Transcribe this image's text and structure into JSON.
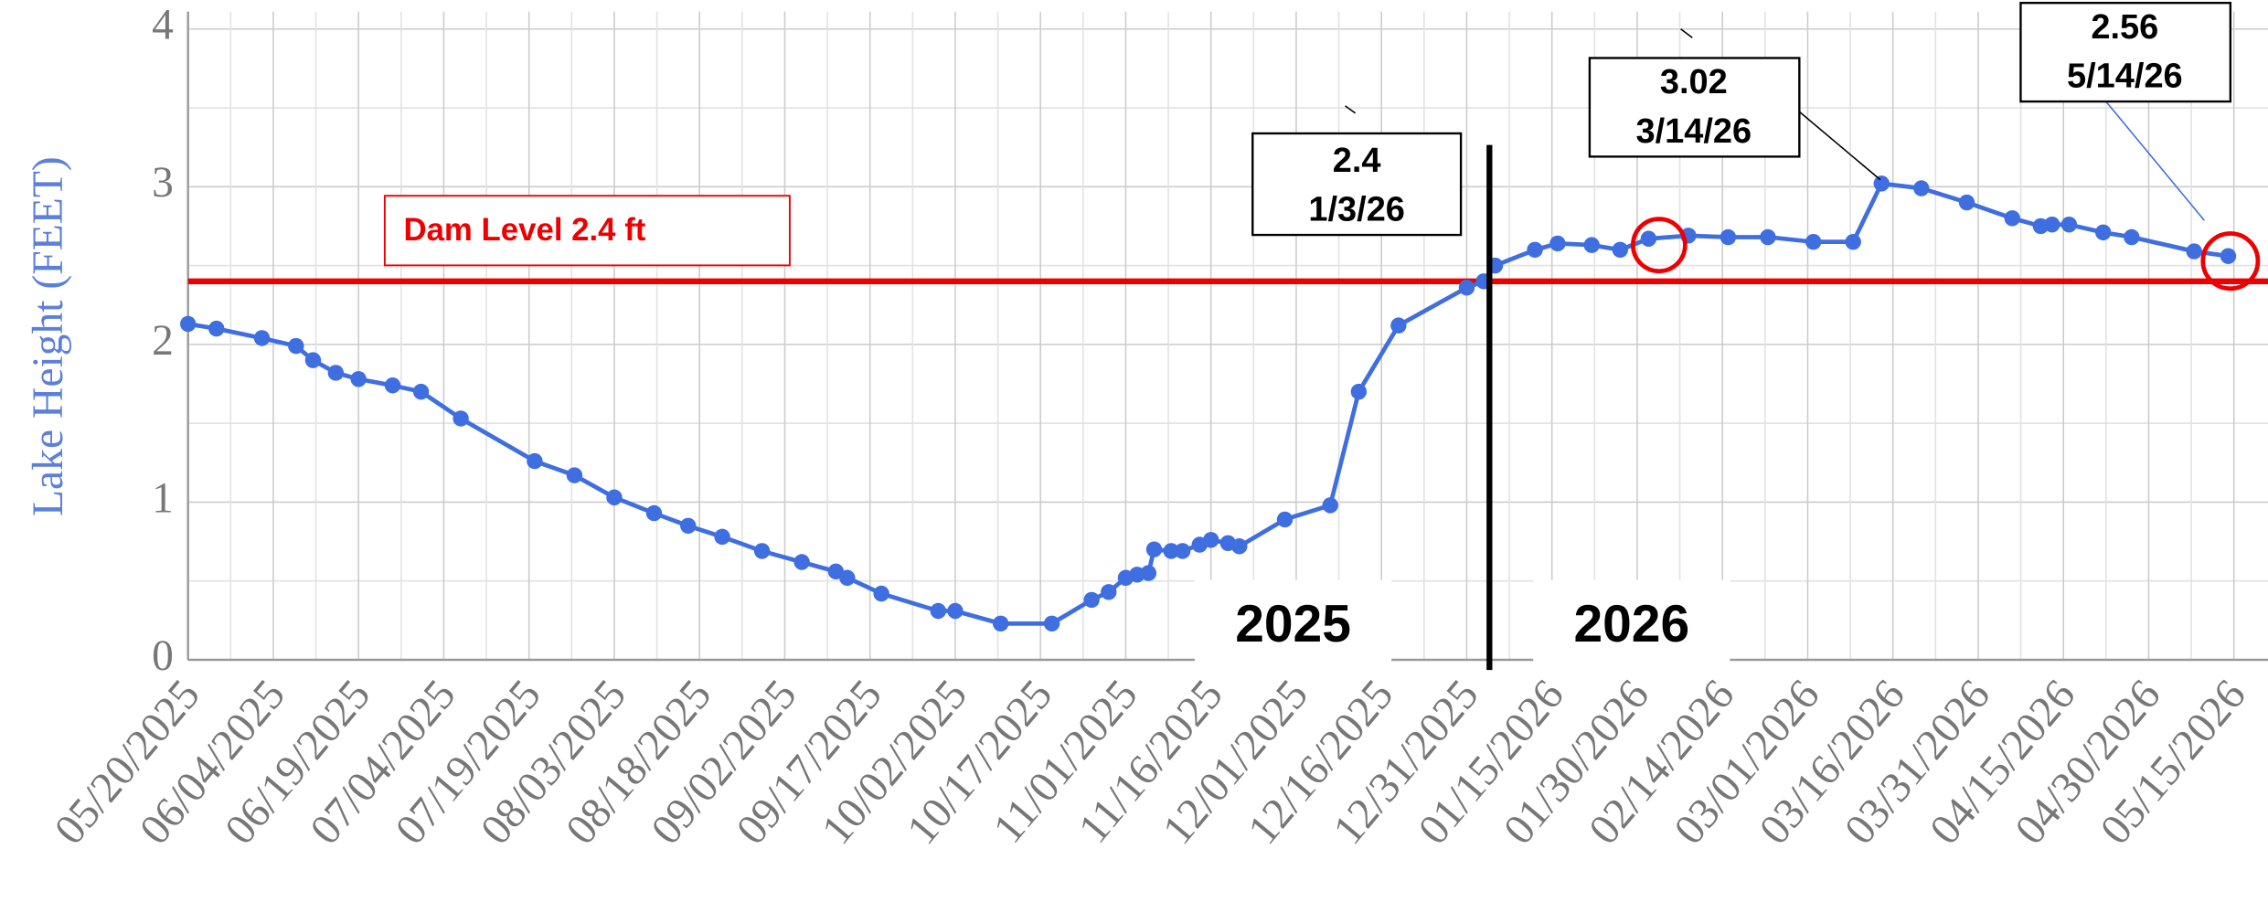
{
  "chart_data": {
    "type": "line",
    "y_label": "Lake Height (FEET)",
    "x": [
      "2025-05-20",
      "2025-05-25",
      "2025-06-02",
      "2025-06-08",
      "2025-06-11",
      "2025-06-15",
      "2025-06-19",
      "2025-06-25",
      "2025-06-30",
      "2025-07-07",
      "2025-07-20",
      "2025-07-27",
      "2025-08-03",
      "2025-08-10",
      "2025-08-16",
      "2025-08-22",
      "2025-08-29",
      "2025-09-05",
      "2025-09-11",
      "2025-09-13",
      "2025-09-19",
      "2025-09-29",
      "2025-10-02",
      "2025-10-10",
      "2025-10-19",
      "2025-10-26",
      "2025-10-29",
      "2025-11-01",
      "2025-11-03",
      "2025-11-05",
      "2025-11-06",
      "2025-11-09",
      "2025-11-11",
      "2025-11-14",
      "2025-11-16",
      "2025-11-19",
      "2025-11-21",
      "2025-11-29",
      "2025-12-07",
      "2025-12-12",
      "2025-12-19",
      "2025-12-31",
      "2026-01-03",
      "2026-01-05",
      "2026-01-12",
      "2026-01-16",
      "2026-01-22",
      "2026-01-27",
      "2026-02-01",
      "2026-02-08",
      "2026-02-15",
      "2026-02-22",
      "2026-03-02",
      "2026-03-09",
      "2026-03-14",
      "2026-03-21",
      "2026-03-29",
      "2026-04-06",
      "2026-04-11",
      "2026-04-13",
      "2026-04-16",
      "2026-04-22",
      "2026-04-27",
      "2026-05-08",
      "2026-05-14"
    ],
    "series": [
      {
        "name": "Lake Height",
        "color": "#3f6ee0",
        "values": [
          2.13,
          2.1,
          2.04,
          1.99,
          1.9,
          1.82,
          1.78,
          1.74,
          1.7,
          1.53,
          1.26,
          1.17,
          1.03,
          0.93,
          0.85,
          0.78,
          0.69,
          0.62,
          0.56,
          0.52,
          0.42,
          0.31,
          0.31,
          0.23,
          0.23,
          0.38,
          0.43,
          0.52,
          0.54,
          0.55,
          0.7,
          0.69,
          0.69,
          0.73,
          0.76,
          0.74,
          0.72,
          0.89,
          0.98,
          1.7,
          2.12,
          2.36,
          2.4,
          2.5,
          2.6,
          2.64,
          2.63,
          2.6,
          2.67,
          2.69,
          2.68,
          2.68,
          2.65,
          2.65,
          3.02,
          2.99,
          2.9,
          2.8,
          2.75,
          2.76,
          2.76,
          2.71,
          2.68,
          2.59,
          2.56
        ]
      }
    ],
    "xlim": [
      "2025-05-20",
      "2026-05-21"
    ],
    "xticks": [
      {
        "value": "2025-05-20",
        "label": "05/20/2025"
      },
      {
        "value": "2025-06-04",
        "label": "06/04/2025"
      },
      {
        "value": "2025-06-19",
        "label": "06/19/2025"
      },
      {
        "value": "2025-07-04",
        "label": "07/04/2025"
      },
      {
        "value": "2025-07-19",
        "label": "07/19/2025"
      },
      {
        "value": "2025-08-03",
        "label": "08/03/2025"
      },
      {
        "value": "2025-08-18",
        "label": "08/18/2025"
      },
      {
        "value": "2025-09-02",
        "label": "09/02/2025"
      },
      {
        "value": "2025-09-17",
        "label": "09/17/2025"
      },
      {
        "value": "2025-10-02",
        "label": "10/02/2025"
      },
      {
        "value": "2025-10-17",
        "label": "10/17/2025"
      },
      {
        "value": "2025-11-01",
        "label": "11/01/2025"
      },
      {
        "value": "2025-11-16",
        "label": "11/16/2025"
      },
      {
        "value": "2025-12-01",
        "label": "12/01/2025"
      },
      {
        "value": "2025-12-16",
        "label": "12/16/2025"
      },
      {
        "value": "2025-12-31",
        "label": "12/31/2025"
      },
      {
        "value": "2026-01-15",
        "label": "01/15/2026"
      },
      {
        "value": "2026-01-30",
        "label": "01/30/2026"
      },
      {
        "value": "2026-02-14",
        "label": "02/14/2026"
      },
      {
        "value": "2026-03-01",
        "label": "03/01/2026"
      },
      {
        "value": "2026-03-16",
        "label": "03/16/2026"
      },
      {
        "value": "2026-03-31",
        "label": "03/31/2026"
      },
      {
        "value": "2026-04-15",
        "label": "04/15/2026"
      },
      {
        "value": "2026-04-30",
        "label": "04/30/2026"
      },
      {
        "value": "2026-05-15",
        "label": "05/15/2026"
      }
    ],
    "ylim": [
      0,
      4
    ],
    "yticks": [
      0,
      1,
      2,
      3,
      4
    ],
    "grid": true,
    "dam_level": 2.4,
    "dam_label": "Dam Level 2.4 ft",
    "year_divider": "2026-01-04",
    "year_labels": [
      "2025",
      "2026"
    ],
    "annotations": [
      {
        "lines": [
          "2.4",
          "1/3/26"
        ]
      },
      {
        "lines": [
          "3.02",
          "3/14/26"
        ]
      },
      {
        "lines": [
          "2.56",
          "5/14/26"
        ]
      }
    ]
  }
}
